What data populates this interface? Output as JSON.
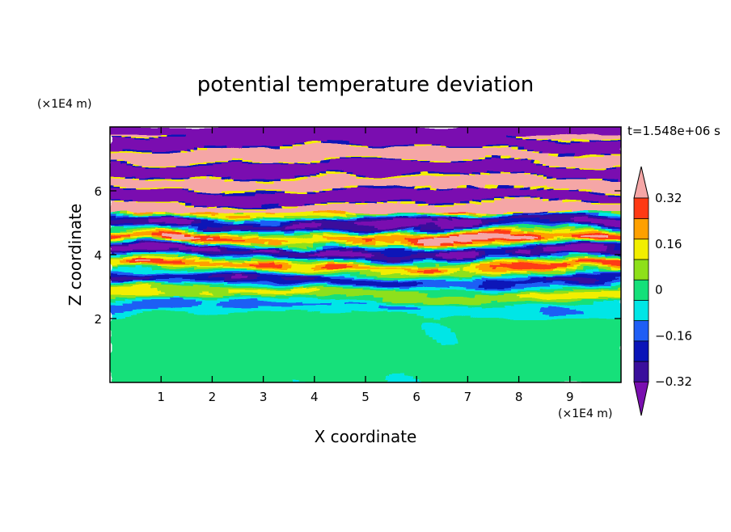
{
  "chart_data": {
    "type": "heatmap",
    "title": "potential temperature deviation",
    "xlabel": "X coordinate",
    "ylabel": "Z coordinate",
    "x_unit_label": "(×1E4 m)",
    "y_unit_label": "(×1E4 m)",
    "time_label": "t=1.548e+06 s",
    "xlim": [
      0,
      10
    ],
    "ylim": [
      0,
      8
    ],
    "x_ticks": [
      1,
      2,
      3,
      4,
      5,
      6,
      7,
      8,
      9
    ],
    "y_ticks": [
      2,
      4,
      6
    ],
    "colorbar": {
      "levels": [
        -0.4,
        -0.32,
        -0.24,
        -0.16,
        -0.08,
        0,
        0.08,
        0.16,
        0.24,
        0.32,
        0.4
      ],
      "tick_labels": [
        "0.32",
        "0.16",
        "0",
        "−0.16",
        "−0.32"
      ],
      "tick_values": [
        0.32,
        0.16,
        0,
        -0.16,
        -0.32
      ],
      "colors": [
        "#7a0fb0",
        "#3a0f9c",
        "#0a14b8",
        "#1f5ef5",
        "#00e6e6",
        "#14e07a",
        "#8ee01a",
        "#f2ee00",
        "#ffa000",
        "#ff3a14",
        "#f5a6a6"
      ],
      "extend": "both"
    },
    "regions": [
      {
        "z_range": [
          0,
          2.0
        ],
        "dominant": [
          -0.08,
          0.08
        ],
        "description_values": [
          0.02,
          0.06
        ]
      },
      {
        "z_range": [
          2.0,
          5.2
        ],
        "dominant": [
          -0.4,
          0.4
        ],
        "description_values": [
          0.0
        ]
      },
      {
        "z_range": [
          5.2,
          8.0
        ],
        "dominant": [
          -0.4,
          0.4
        ],
        "description_values": [
          0.4,
          -0.4
        ]
      }
    ]
  }
}
